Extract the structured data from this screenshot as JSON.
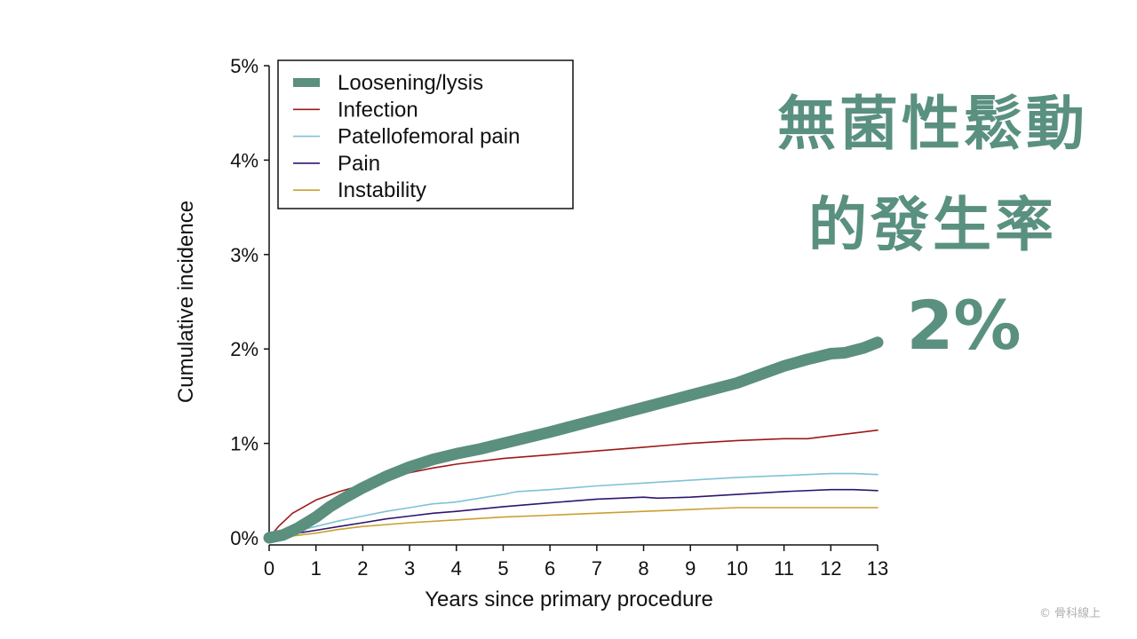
{
  "headline": {
    "line1": "無菌性鬆動",
    "line2": "的發生率",
    "line3": "2%"
  },
  "credit": "© 骨科線上",
  "colors": {
    "headline": "#5a9080"
  },
  "chart_data": {
    "type": "line",
    "xlabel": "Years since primary procedure",
    "ylabel": "Cumulative incidence",
    "xlim": [
      0,
      13
    ],
    "ylim": [
      0,
      5
    ],
    "xticks": [
      0,
      1,
      2,
      3,
      4,
      5,
      6,
      7,
      8,
      9,
      10,
      11,
      12,
      13
    ],
    "xtick_labels": [
      "0",
      "1",
      "2",
      "3",
      "4",
      "5",
      "6",
      "7",
      "8",
      "9",
      "10",
      "11",
      "12",
      "13"
    ],
    "yticks": [
      0,
      1,
      2,
      3,
      4,
      5
    ],
    "ytick_labels": [
      "0%",
      "1%",
      "2%",
      "3%",
      "4%",
      "5%"
    ],
    "grid": false,
    "legend_position": "top-left",
    "series": [
      {
        "name": "Loosening/lysis",
        "color": "#5b8f7e",
        "emphasis": true,
        "x": [
          0,
          0.3,
          0.6,
          1,
          1.3,
          1.6,
          2,
          2.5,
          3,
          3.5,
          4,
          4.5,
          5,
          6,
          7,
          8,
          9,
          10,
          10.5,
          11,
          11.5,
          12,
          12.3,
          12.7,
          13
        ],
        "y": [
          0,
          0.03,
          0.1,
          0.22,
          0.33,
          0.42,
          0.53,
          0.65,
          0.75,
          0.83,
          0.89,
          0.94,
          1.0,
          1.12,
          1.25,
          1.38,
          1.51,
          1.64,
          1.73,
          1.82,
          1.89,
          1.95,
          1.96,
          2.01,
          2.07
        ]
      },
      {
        "name": "Infection",
        "color": "#a01818",
        "x": [
          0,
          0.2,
          0.5,
          1,
          1.5,
          2,
          2.5,
          3,
          3.5,
          4,
          5,
          6,
          7,
          8,
          9,
          10,
          11,
          11.5,
          12,
          12.5,
          13
        ],
        "y": [
          0,
          0.12,
          0.26,
          0.4,
          0.49,
          0.56,
          0.62,
          0.69,
          0.74,
          0.78,
          0.84,
          0.88,
          0.92,
          0.96,
          1.0,
          1.03,
          1.05,
          1.05,
          1.08,
          1.11,
          1.14
        ]
      },
      {
        "name": "Patellofemoral pain",
        "color": "#7ec3d4",
        "x": [
          0,
          0.5,
          1,
          1.5,
          2,
          2.5,
          3,
          3.5,
          3.8,
          4,
          4.5,
          5,
          5.3,
          6,
          7,
          8,
          9,
          10,
          11,
          12,
          12.5,
          13
        ],
        "y": [
          0,
          0.06,
          0.12,
          0.18,
          0.23,
          0.28,
          0.32,
          0.36,
          0.37,
          0.38,
          0.42,
          0.46,
          0.49,
          0.51,
          0.55,
          0.58,
          0.61,
          0.64,
          0.66,
          0.68,
          0.68,
          0.67
        ]
      },
      {
        "name": "Pain",
        "color": "#2e1570",
        "x": [
          0,
          0.5,
          1,
          1.5,
          2,
          2.5,
          3,
          3.5,
          4,
          5,
          6,
          7,
          8,
          8.3,
          9,
          10,
          11,
          12,
          12.5,
          13
        ],
        "y": [
          0,
          0.04,
          0.08,
          0.12,
          0.16,
          0.2,
          0.23,
          0.26,
          0.28,
          0.33,
          0.37,
          0.41,
          0.43,
          0.42,
          0.43,
          0.46,
          0.49,
          0.51,
          0.51,
          0.5
        ]
      },
      {
        "name": "Instability",
        "color": "#c9a030",
        "x": [
          0,
          0.5,
          1,
          1.5,
          2,
          3,
          4,
          5,
          6,
          7,
          8,
          9,
          9.5,
          10,
          11,
          12,
          13
        ],
        "y": [
          0,
          0.02,
          0.05,
          0.09,
          0.12,
          0.16,
          0.19,
          0.22,
          0.24,
          0.26,
          0.28,
          0.3,
          0.31,
          0.32,
          0.32,
          0.32,
          0.32
        ]
      }
    ]
  }
}
